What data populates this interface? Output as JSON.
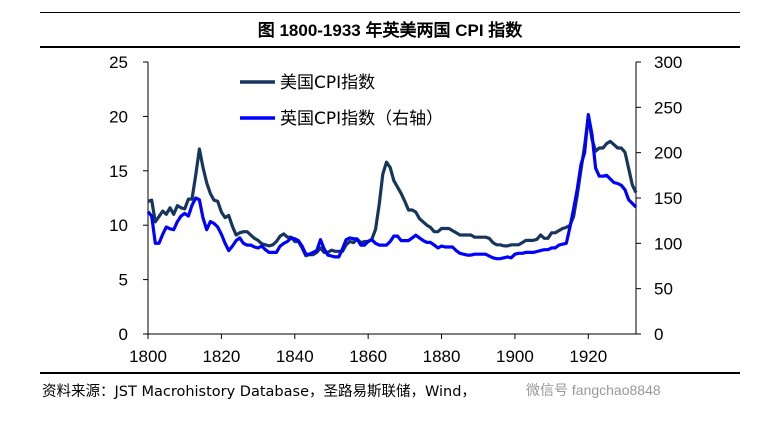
{
  "title": "图  1800-1933 年英美两国 CPI 指数",
  "source": "资料来源：JST Macrohistory Database，圣路易斯联储，Wind，",
  "watermark": "微信号 fangchao8848",
  "chart_data": {
    "type": "line",
    "xlim": [
      1800,
      1933
    ],
    "x_ticks": [
      1800,
      1820,
      1840,
      1860,
      1880,
      1900,
      1920
    ],
    "y_left": {
      "lim": [
        0,
        25
      ],
      "ticks": [
        0,
        5,
        10,
        15,
        20,
        25
      ]
    },
    "y_right": {
      "lim": [
        0,
        300
      ],
      "ticks": [
        0,
        50,
        100,
        150,
        200,
        250,
        300
      ]
    },
    "legend_position": "top-left",
    "series": [
      {
        "name": "美国CPI指数",
        "axis": "left",
        "color": "#17365d",
        "points": [
          [
            1800,
            12.2
          ],
          [
            1801,
            12.3
          ],
          [
            1802,
            10.3
          ],
          [
            1803,
            10.8
          ],
          [
            1804,
            11.3
          ],
          [
            1805,
            11.0
          ],
          [
            1806,
            11.6
          ],
          [
            1807,
            11.0
          ],
          [
            1808,
            11.8
          ],
          [
            1809,
            11.6
          ],
          [
            1810,
            11.5
          ],
          [
            1811,
            12.4
          ],
          [
            1812,
            12.4
          ],
          [
            1813,
            14.6
          ],
          [
            1814,
            17.0
          ],
          [
            1815,
            15.3
          ],
          [
            1816,
            13.9
          ],
          [
            1817,
            12.9
          ],
          [
            1818,
            12.3
          ],
          [
            1819,
            12.2
          ],
          [
            1820,
            11.2
          ],
          [
            1821,
            10.7
          ],
          [
            1822,
            10.9
          ],
          [
            1823,
            9.9
          ],
          [
            1824,
            9.1
          ],
          [
            1825,
            9.3
          ],
          [
            1826,
            9.4
          ],
          [
            1827,
            9.4
          ],
          [
            1828,
            9.1
          ],
          [
            1829,
            8.8
          ],
          [
            1830,
            8.6
          ],
          [
            1831,
            8.3
          ],
          [
            1832,
            8.2
          ],
          [
            1833,
            8.1
          ],
          [
            1834,
            8.2
          ],
          [
            1835,
            8.5
          ],
          [
            1836,
            9.0
          ],
          [
            1837,
            9.2
          ],
          [
            1838,
            8.9
          ],
          [
            1839,
            8.9
          ],
          [
            1840,
            8.5
          ],
          [
            1841,
            8.5
          ],
          [
            1842,
            7.9
          ],
          [
            1843,
            7.2
          ],
          [
            1844,
            7.3
          ],
          [
            1845,
            7.3
          ],
          [
            1846,
            7.5
          ],
          [
            1847,
            7.9
          ],
          [
            1848,
            7.5
          ],
          [
            1849,
            7.5
          ],
          [
            1850,
            7.7
          ],
          [
            1851,
            7.6
          ],
          [
            1852,
            7.6
          ],
          [
            1853,
            7.6
          ],
          [
            1854,
            8.2
          ],
          [
            1855,
            8.5
          ],
          [
            1856,
            8.4
          ],
          [
            1857,
            8.7
          ],
          [
            1858,
            8.4
          ],
          [
            1859,
            8.5
          ],
          [
            1860,
            8.5
          ],
          [
            1861,
            8.7
          ],
          [
            1862,
            9.6
          ],
          [
            1863,
            11.9
          ],
          [
            1864,
            14.7
          ],
          [
            1865,
            15.8
          ],
          [
            1866,
            15.3
          ],
          [
            1867,
            14.1
          ],
          [
            1868,
            13.5
          ],
          [
            1869,
            12.9
          ],
          [
            1870,
            12.2
          ],
          [
            1871,
            11.4
          ],
          [
            1872,
            11.4
          ],
          [
            1873,
            11.2
          ],
          [
            1874,
            10.6
          ],
          [
            1875,
            10.3
          ],
          [
            1876,
            10.0
          ],
          [
            1877,
            9.8
          ],
          [
            1878,
            9.4
          ],
          [
            1879,
            9.4
          ],
          [
            1880,
            9.7
          ],
          [
            1881,
            9.7
          ],
          [
            1882,
            9.7
          ],
          [
            1883,
            9.5
          ],
          [
            1884,
            9.3
          ],
          [
            1885,
            9.1
          ],
          [
            1886,
            9.1
          ],
          [
            1887,
            9.1
          ],
          [
            1888,
            9.1
          ],
          [
            1889,
            8.9
          ],
          [
            1890,
            8.9
          ],
          [
            1891,
            8.9
          ],
          [
            1892,
            8.9
          ],
          [
            1893,
            8.8
          ],
          [
            1894,
            8.4
          ],
          [
            1895,
            8.2
          ],
          [
            1896,
            8.2
          ],
          [
            1897,
            8.1
          ],
          [
            1898,
            8.1
          ],
          [
            1899,
            8.2
          ],
          [
            1900,
            8.2
          ],
          [
            1901,
            8.2
          ],
          [
            1902,
            8.4
          ],
          [
            1903,
            8.6
          ],
          [
            1904,
            8.6
          ],
          [
            1905,
            8.6
          ],
          [
            1906,
            8.7
          ],
          [
            1907,
            9.1
          ],
          [
            1908,
            8.8
          ],
          [
            1909,
            8.8
          ],
          [
            1910,
            9.3
          ],
          [
            1911,
            9.3
          ],
          [
            1912,
            9.5
          ],
          [
            1913,
            9.7
          ],
          [
            1914,
            9.8
          ],
          [
            1915,
            10.0
          ],
          [
            1916,
            10.8
          ],
          [
            1917,
            12.8
          ],
          [
            1918,
            15.1
          ],
          [
            1919,
            17.3
          ],
          [
            1920,
            20.0
          ],
          [
            1921,
            17.9
          ],
          [
            1922,
            16.8
          ],
          [
            1923,
            17.1
          ],
          [
            1924,
            17.1
          ],
          [
            1925,
            17.5
          ],
          [
            1926,
            17.7
          ],
          [
            1927,
            17.4
          ],
          [
            1928,
            17.1
          ],
          [
            1929,
            17.1
          ],
          [
            1930,
            16.7
          ],
          [
            1931,
            15.2
          ],
          [
            1932,
            13.7
          ],
          [
            1933,
            13.0
          ]
        ]
      },
      {
        "name": "英国CPI指数（右轴）",
        "axis": "right",
        "color": "#0000ff",
        "points": [
          [
            1800,
            135
          ],
          [
            1801,
            130
          ],
          [
            1802,
            100
          ],
          [
            1803,
            100
          ],
          [
            1804,
            110
          ],
          [
            1805,
            118
          ],
          [
            1806,
            116
          ],
          [
            1807,
            115
          ],
          [
            1808,
            124
          ],
          [
            1809,
            130
          ],
          [
            1810,
            133
          ],
          [
            1811,
            130
          ],
          [
            1812,
            142
          ],
          [
            1813,
            150
          ],
          [
            1814,
            148
          ],
          [
            1815,
            128
          ],
          [
            1816,
            115
          ],
          [
            1817,
            124
          ],
          [
            1818,
            122
          ],
          [
            1819,
            118
          ],
          [
            1820,
            110
          ],
          [
            1821,
            100
          ],
          [
            1822,
            92
          ],
          [
            1823,
            97
          ],
          [
            1824,
            103
          ],
          [
            1825,
            106
          ],
          [
            1826,
            100
          ],
          [
            1827,
            98
          ],
          [
            1828,
            98
          ],
          [
            1829,
            96
          ],
          [
            1830,
            95
          ],
          [
            1831,
            97
          ],
          [
            1832,
            93
          ],
          [
            1833,
            90
          ],
          [
            1834,
            90
          ],
          [
            1835,
            90
          ],
          [
            1836,
            97
          ],
          [
            1837,
            100
          ],
          [
            1838,
            102
          ],
          [
            1839,
            106
          ],
          [
            1840,
            105
          ],
          [
            1841,
            103
          ],
          [
            1842,
            97
          ],
          [
            1843,
            88
          ],
          [
            1844,
            88
          ],
          [
            1845,
            90
          ],
          [
            1846,
            92
          ],
          [
            1847,
            104
          ],
          [
            1848,
            94
          ],
          [
            1849,
            87
          ],
          [
            1850,
            86
          ],
          [
            1851,
            85
          ],
          [
            1852,
            85
          ],
          [
            1853,
            94
          ],
          [
            1854,
            104
          ],
          [
            1855,
            106
          ],
          [
            1856,
            105
          ],
          [
            1857,
            105
          ],
          [
            1858,
            98
          ],
          [
            1859,
            98
          ],
          [
            1860,
            102
          ],
          [
            1861,
            104
          ],
          [
            1862,
            100
          ],
          [
            1863,
            98
          ],
          [
            1864,
            98
          ],
          [
            1865,
            98
          ],
          [
            1866,
            102
          ],
          [
            1867,
            108
          ],
          [
            1868,
            108
          ],
          [
            1869,
            103
          ],
          [
            1870,
            103
          ],
          [
            1871,
            103
          ],
          [
            1872,
            106
          ],
          [
            1873,
            109
          ],
          [
            1874,
            106
          ],
          [
            1875,
            103
          ],
          [
            1876,
            101
          ],
          [
            1877,
            101
          ],
          [
            1878,
            98
          ],
          [
            1879,
            95
          ],
          [
            1880,
            97
          ],
          [
            1881,
            96
          ],
          [
            1882,
            96
          ],
          [
            1883,
            96
          ],
          [
            1884,
            92
          ],
          [
            1885,
            89
          ],
          [
            1886,
            88
          ],
          [
            1887,
            87
          ],
          [
            1888,
            87
          ],
          [
            1889,
            88
          ],
          [
            1890,
            88
          ],
          [
            1891,
            88
          ],
          [
            1892,
            88
          ],
          [
            1893,
            86
          ],
          [
            1894,
            84
          ],
          [
            1895,
            83
          ],
          [
            1896,
            83
          ],
          [
            1897,
            84
          ],
          [
            1898,
            85
          ],
          [
            1899,
            84
          ],
          [
            1900,
            88
          ],
          [
            1901,
            89
          ],
          [
            1902,
            89
          ],
          [
            1903,
            90
          ],
          [
            1904,
            90
          ],
          [
            1905,
            90
          ],
          [
            1906,
            91
          ],
          [
            1907,
            92
          ],
          [
            1908,
            93
          ],
          [
            1909,
            93
          ],
          [
            1910,
            95
          ],
          [
            1911,
            95
          ],
          [
            1912,
            98
          ],
          [
            1913,
            99
          ],
          [
            1914,
            100
          ],
          [
            1915,
            118
          ],
          [
            1916,
            138
          ],
          [
            1917,
            160
          ],
          [
            1918,
            187
          ],
          [
            1919,
            200
          ],
          [
            1920,
            242
          ],
          [
            1921,
            220
          ],
          [
            1922,
            183
          ],
          [
            1923,
            174
          ],
          [
            1924,
            174
          ],
          [
            1925,
            175
          ],
          [
            1926,
            171
          ],
          [
            1927,
            167
          ],
          [
            1928,
            166
          ],
          [
            1929,
            164
          ],
          [
            1930,
            159
          ],
          [
            1931,
            148
          ],
          [
            1932,
            144
          ],
          [
            1933,
            140
          ]
        ]
      }
    ]
  }
}
